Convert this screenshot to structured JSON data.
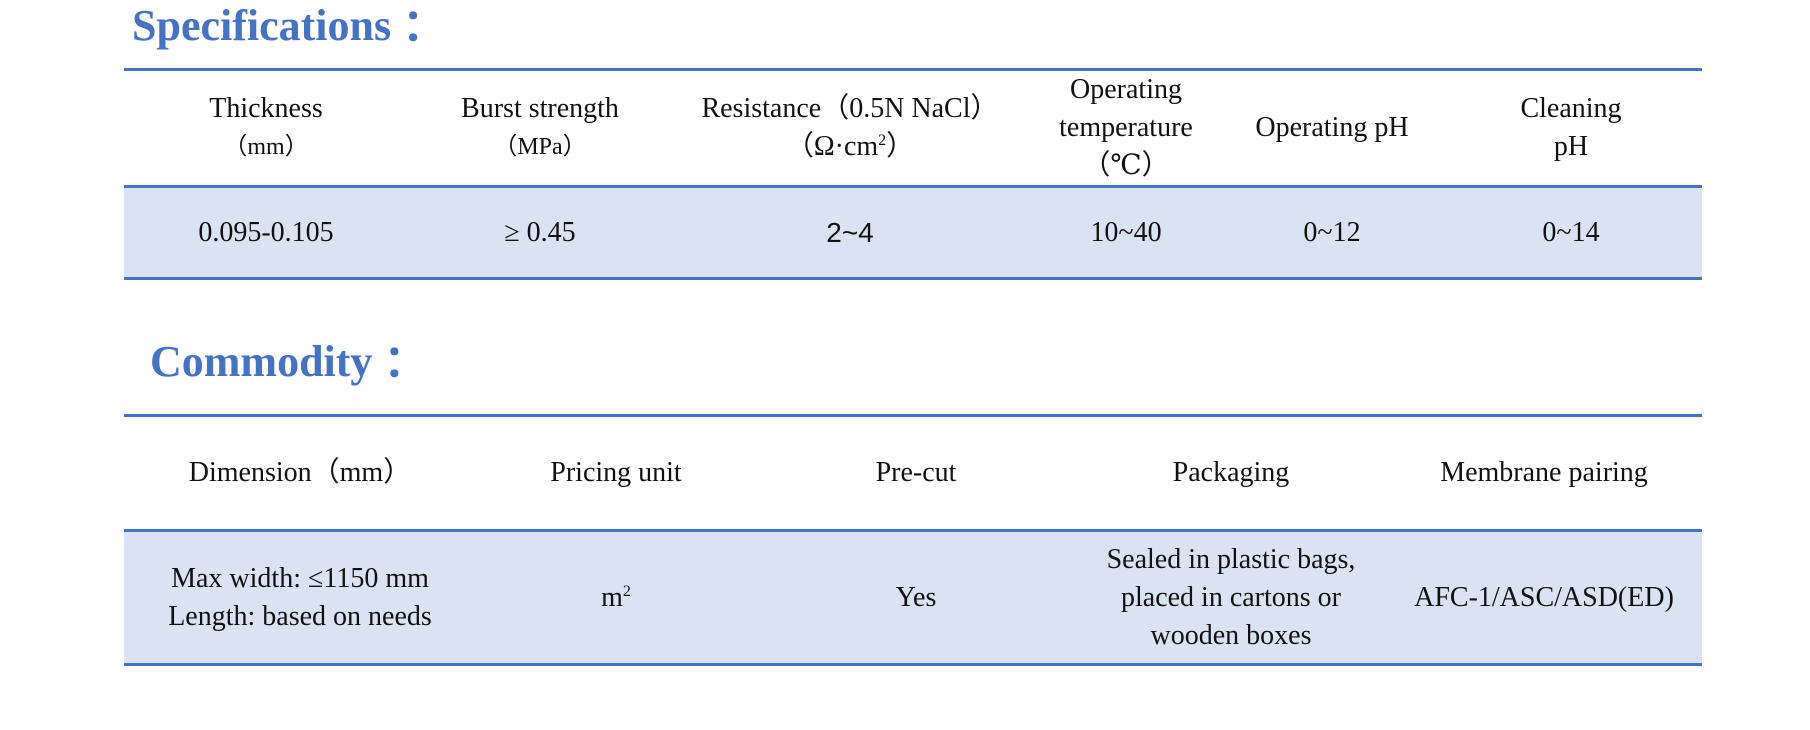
{
  "specifications": {
    "title": "Specifications ：",
    "headers": [
      {
        "line1": "Thickness",
        "line2": "（mm）"
      },
      {
        "line1": "Burst strength",
        "line2": "（MPa）"
      },
      {
        "line1": "Resistance（0.5N NaCl）",
        "line2a": "（Ω·cm",
        "line2sup": "2",
        "line2b": "）"
      },
      {
        "line1": "Operating",
        "line2": "temperature",
        "line3": "（℃）"
      },
      {
        "line1": "Operating pH"
      },
      {
        "line1": "Cleaning",
        "line2": "pH"
      }
    ],
    "values": [
      "0.095-0.105",
      "≥ 0.45",
      "2~4",
      "10~40",
      "0~12",
      "0~14"
    ]
  },
  "commodity": {
    "title": "Commodity ：",
    "headers": [
      "Dimension（mm）",
      "Pricing unit",
      "Pre-cut",
      "Packaging",
      "Membrane pairing"
    ],
    "values": {
      "dimension_line1": "Max width: ≤1150 mm",
      "dimension_line2": "Length: based on needs",
      "pricing_unit": "m",
      "pricing_unit_sup": "2",
      "pre_cut": "Yes",
      "packaging_line1": "Sealed in plastic bags,",
      "packaging_line2": "placed in cartons or",
      "packaging_line3": "wooden boxes",
      "membrane_pairing": "AFC-1/ASC/ASD(ED)"
    }
  },
  "colors": {
    "accent": "#4472c4",
    "row_fill": "#dae3f3"
  }
}
